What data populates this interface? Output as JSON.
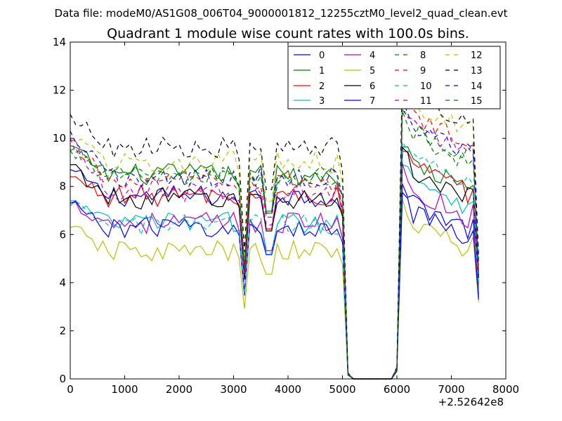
{
  "figure": {
    "suptitle": "Data file: modeM0/AS1G08_006T04_9000001812_12255cztM0_level2_quad_clean.evt"
  },
  "chart_data": {
    "type": "line",
    "title": "Quadrant 1 module wise count rates with 100.0s bins.",
    "xlabel": "",
    "ylabel": "",
    "x_offset_label": "+2.52642e8",
    "xlim": [
      0,
      8000
    ],
    "ylim": [
      0,
      14
    ],
    "x_ticks": [
      0,
      1000,
      2000,
      3000,
      4000,
      5000,
      6000,
      7000,
      8000
    ],
    "y_ticks": [
      0,
      2,
      4,
      6,
      8,
      10,
      12,
      14
    ],
    "x_tick_labels": [
      "0",
      "1000",
      "2000",
      "3000",
      "4000",
      "5000",
      "6000",
      "7000",
      "8000"
    ],
    "y_tick_labels": [
      "0",
      "2",
      "4",
      "6",
      "8",
      "10",
      "12",
      "14"
    ],
    "grid": false,
    "legend_position": "top-right",
    "legend_columns": 4,
    "bin_width": 100,
    "x_start": 0,
    "gap_x_range": [
      5200,
      5900
    ],
    "series": [
      {
        "name": "0",
        "color": "#0000ff",
        "style": "solid",
        "seg1_level": 7.6,
        "seg2_level": 7.2,
        "seg1_start": 8.7,
        "end": 4.0
      },
      {
        "name": "1",
        "color": "#008000",
        "style": "solid",
        "seg1_level": 8.5,
        "seg2_level": 8.8,
        "seg1_start": 9.7,
        "end": 4.3
      },
      {
        "name": "2",
        "color": "#ff0000",
        "style": "solid",
        "seg1_level": 7.6,
        "seg2_level": 8.7,
        "seg1_start": 8.4,
        "end": 3.8
      },
      {
        "name": "3",
        "color": "#00bfbf",
        "style": "solid",
        "seg1_level": 6.5,
        "seg2_level": 8.2,
        "seg1_start": 7.4,
        "end": 3.5
      },
      {
        "name": "4",
        "color": "#bf00bf",
        "style": "solid",
        "seg1_level": 6.5,
        "seg2_level": 7.7,
        "seg1_start": 7.3,
        "end": 3.4
      },
      {
        "name": "5",
        "color": "#bfbf00",
        "style": "solid",
        "seg1_level": 5.3,
        "seg2_level": 6.3,
        "seg1_start": 6.3,
        "end": 3.2
      },
      {
        "name": "6",
        "color": "#000000",
        "style": "solid",
        "seg1_level": 7.5,
        "seg2_level": 8.5,
        "seg1_start": 8.9,
        "end": 4.2
      },
      {
        "name": "7",
        "color": "#0000ff",
        "style": "solid",
        "seg1_level": 6.3,
        "seg2_level": 6.7,
        "seg1_start": 7.3,
        "end": 3.3
      },
      {
        "name": "8",
        "color": "#008000",
        "style": "dashed",
        "seg1_level": 8.4,
        "seg2_level": 10.2,
        "seg1_start": 9.5,
        "end": 4.6
      },
      {
        "name": "9",
        "color": "#ff0000",
        "style": "dashed",
        "seg1_level": 8.2,
        "seg2_level": 10.7,
        "seg1_start": 9.9,
        "end": 4.4
      },
      {
        "name": "10",
        "color": "#00bfbf",
        "style": "dashed",
        "seg1_level": 6.4,
        "seg2_level": 9.0,
        "seg1_start": 7.2,
        "end": 3.7
      },
      {
        "name": "11",
        "color": "#bf00bf",
        "style": "dashed",
        "seg1_level": 7.8,
        "seg2_level": 10.5,
        "seg1_start": 10.0,
        "end": 4.4
      },
      {
        "name": "12",
        "color": "#bfbf00",
        "style": "dashed",
        "seg1_level": 9.0,
        "seg2_level": 11.3,
        "seg1_start": 10.3,
        "end": 4.8
      },
      {
        "name": "13",
        "color": "#000000",
        "style": "dashed",
        "seg1_level": 9.6,
        "seg2_level": 11.7,
        "seg1_start": 11.0,
        "end": 5.1
      },
      {
        "name": "14",
        "color": "#0000ff",
        "style": "dashed",
        "seg1_level": 8.4,
        "seg2_level": 10.4,
        "seg1_start": 10.3,
        "end": 4.9
      },
      {
        "name": "15",
        "color": "#008000",
        "style": "dashed",
        "seg1_level": 8.4,
        "seg2_level": 10.0,
        "seg1_start": 9.5,
        "end": 4.5
      }
    ]
  }
}
